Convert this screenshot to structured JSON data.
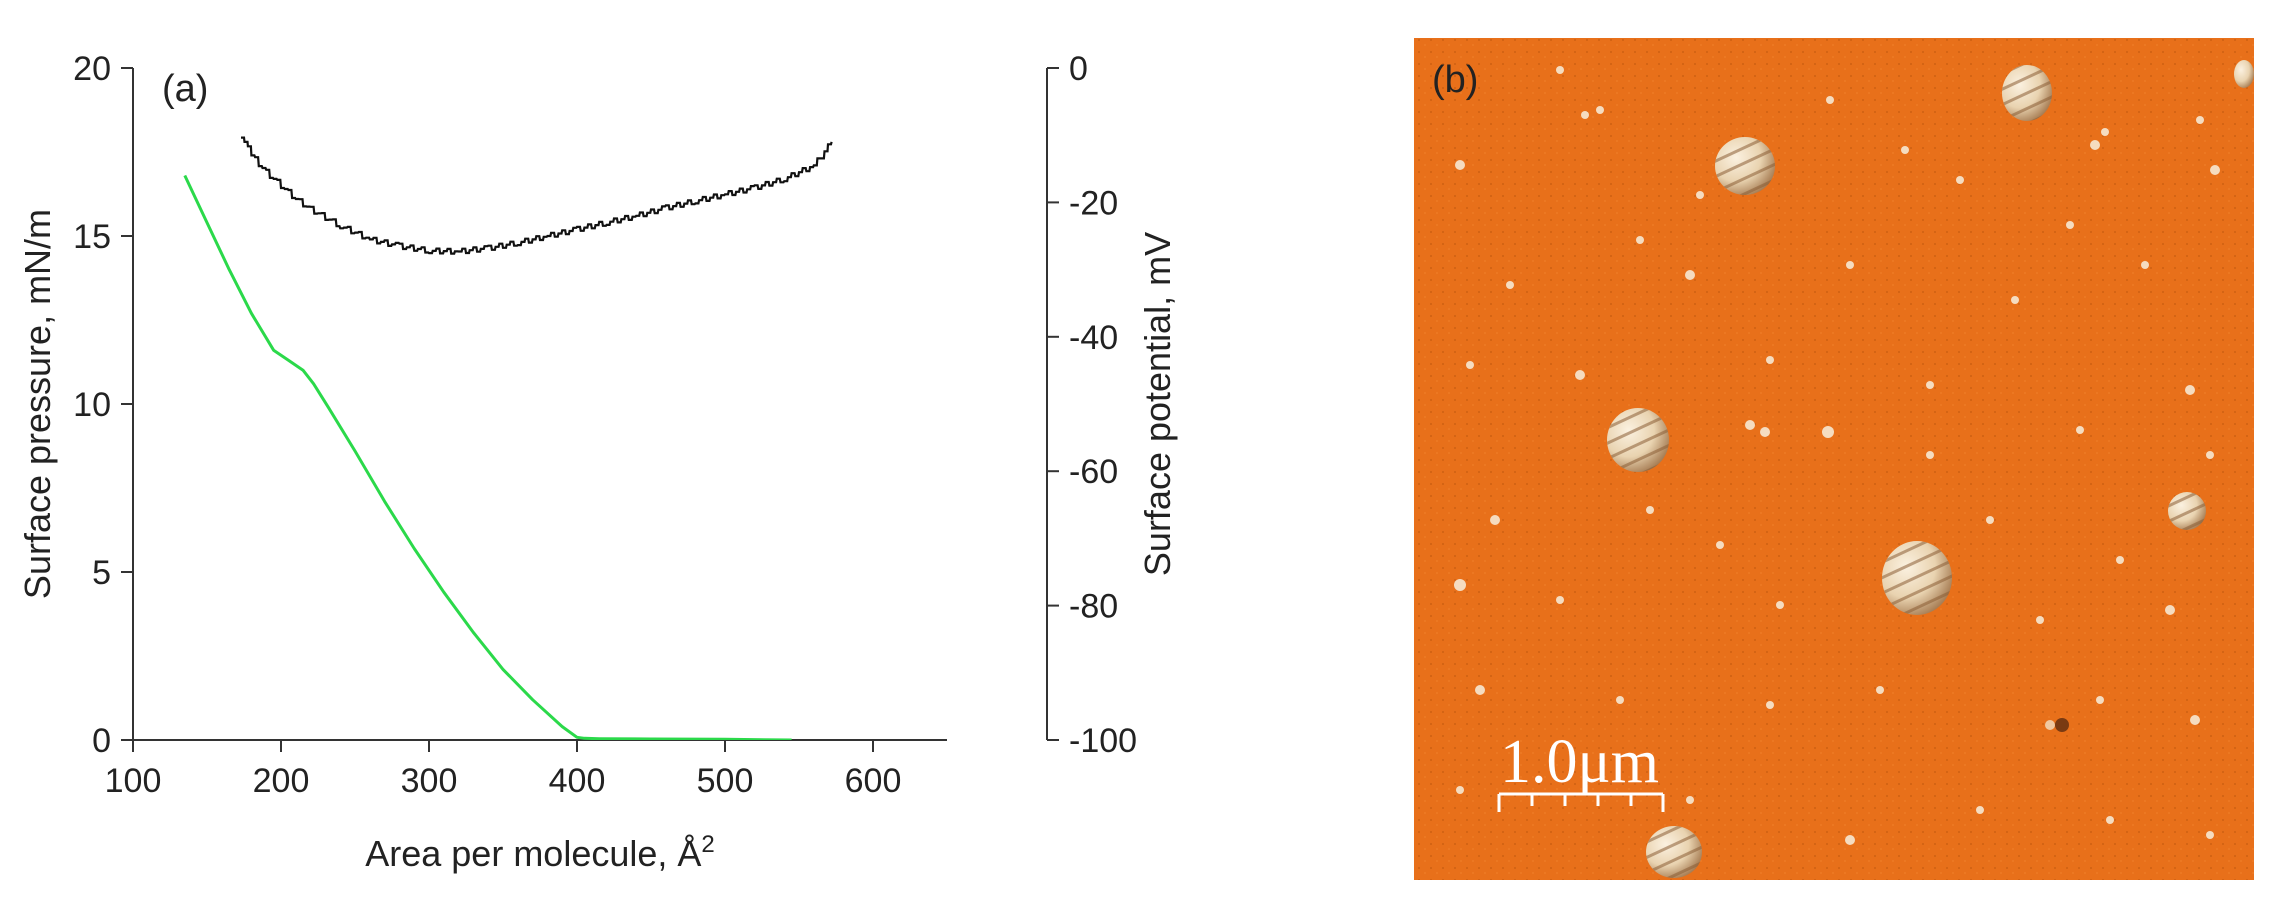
{
  "chart_data": [
    {
      "type": "line",
      "panel_label": "(a)",
      "xlabel": "Area per molecule, Å",
      "xlabel_superscript": "2",
      "ylabel": "Surface pressure, mN/m",
      "y2label": "Surface potential, mV",
      "xlim": [
        100,
        650
      ],
      "ylim": [
        0,
        20
      ],
      "y2lim": [
        -100,
        0
      ],
      "xticks": [
        100,
        200,
        300,
        400,
        500,
        600
      ],
      "yticks": [
        0,
        5,
        10,
        15,
        20
      ],
      "y2ticks": [
        -100,
        -80,
        -60,
        -40,
        -20,
        0
      ],
      "grid": false,
      "legend": "none",
      "series": [
        {
          "name": "Surface pressure",
          "axis": "left",
          "color": "#2bd94a",
          "x": [
            135,
            150,
            165,
            180,
            195,
            205,
            215,
            222,
            232,
            250,
            270,
            290,
            310,
            330,
            350,
            370,
            390,
            400,
            405,
            415,
            450,
            500,
            545
          ],
          "y": [
            16.8,
            15.4,
            14.0,
            12.7,
            11.6,
            11.3,
            11.0,
            10.6,
            9.9,
            8.6,
            7.1,
            5.7,
            4.4,
            3.2,
            2.1,
            1.2,
            0.4,
            0.08,
            0.05,
            0.04,
            0.03,
            0.02,
            0.0
          ]
        },
        {
          "name": "Surface potential",
          "axis": "right",
          "color": "#111111",
          "x": [
            173,
            180,
            190,
            200,
            210,
            220,
            240,
            260,
            280,
            300,
            320,
            340,
            360,
            380,
            400,
            420,
            440,
            460,
            480,
            500,
            520,
            540,
            560,
            572
          ],
          "y": [
            -10,
            -13,
            -15.5,
            -17.5,
            -19.5,
            -21,
            -23.5,
            -25.5,
            -26.5,
            -27.2,
            -27.3,
            -26.8,
            -26,
            -25,
            -24,
            -23,
            -22,
            -20.8,
            -19.8,
            -18.8,
            -17.8,
            -16.5,
            -14.5,
            -11
          ]
        }
      ]
    },
    {
      "type": "image",
      "panel_label": "(b)",
      "background_color": "#e8701a",
      "scale_bar_label": "1.0μm"
    }
  ]
}
